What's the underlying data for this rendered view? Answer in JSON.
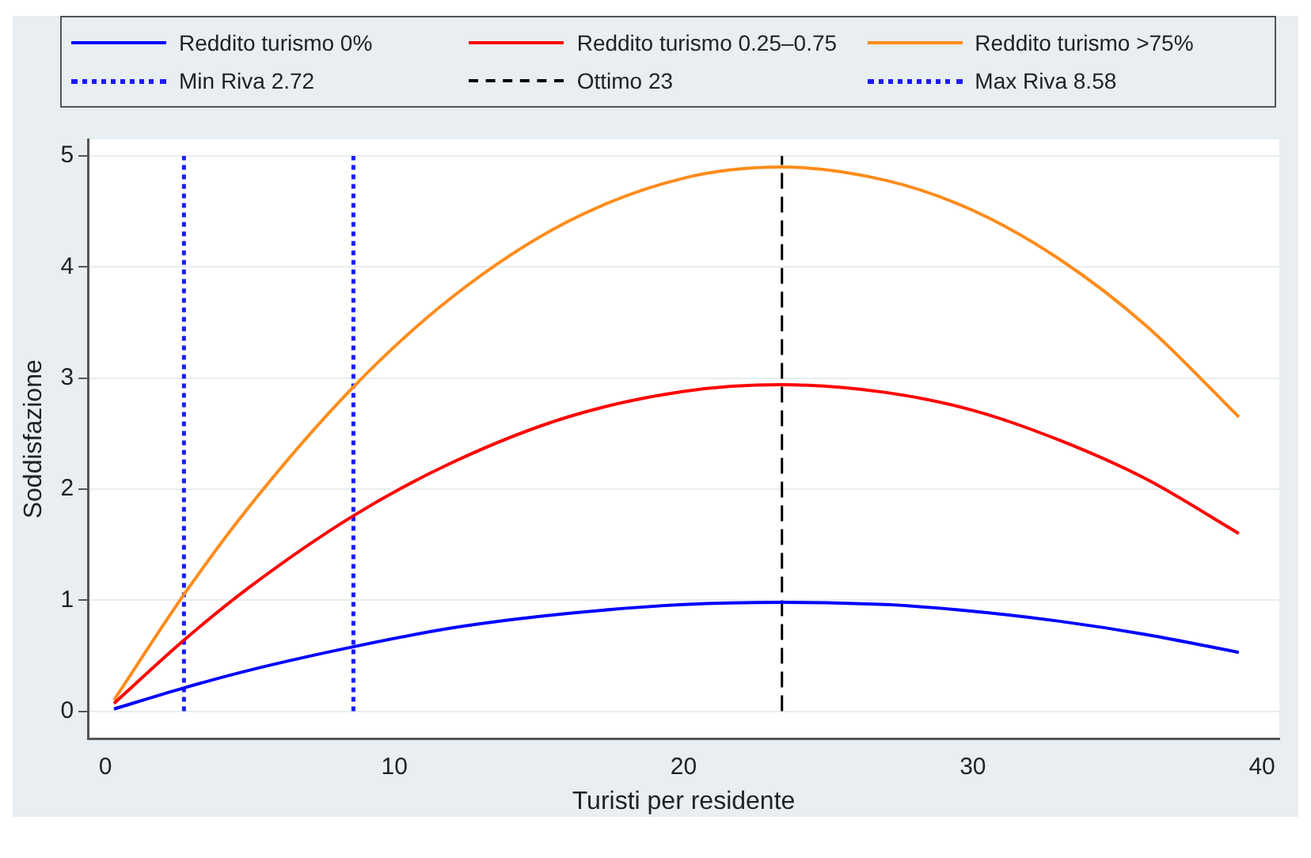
{
  "chart_data": {
    "type": "line",
    "xlabel": "Turisti per residente",
    "ylabel": "Soddisfazione",
    "x": [
      0.3,
      2.72,
      5,
      8.58,
      12,
      16,
      20,
      23.4,
      27,
      30,
      33,
      36,
      39.2
    ],
    "series": [
      {
        "name": "Reddito turismo 0%",
        "color": "#0000ff",
        "values": [
          0.02,
          0.21,
          0.37,
          0.58,
          0.75,
          0.88,
          0.96,
          0.98,
          0.96,
          0.9,
          0.81,
          0.69,
          0.53
        ]
      },
      {
        "name": "Reddito turismo 0.25–0.75",
        "color": "#ff0000",
        "values": [
          0.07,
          0.64,
          1.12,
          1.76,
          2.24,
          2.65,
          2.88,
          2.94,
          2.87,
          2.71,
          2.44,
          2.09,
          1.6
        ]
      },
      {
        "name": "Reddito turismo >75%",
        "color": "#ff8c1a",
        "values": [
          0.1,
          1.05,
          1.85,
          2.92,
          3.73,
          4.41,
          4.8,
          4.9,
          4.78,
          4.51,
          4.07,
          3.47,
          2.65
        ]
      }
    ],
    "ref_lines": [
      {
        "axis": "x",
        "value": 2.72,
        "label": "Min Riva 2.72",
        "color": "#1a1aff",
        "line_style": "dotted"
      },
      {
        "axis": "x",
        "value": 23.4,
        "label": "Ottimo 23",
        "color": "#000000",
        "line_style": "dashed"
      },
      {
        "axis": "x",
        "value": 8.58,
        "label": "Max Riva 8.58",
        "color": "#1a1aff",
        "line_style": "dotted"
      }
    ],
    "xlim": [
      -0.6,
      40.6
    ],
    "xticks": [
      0,
      10,
      20,
      30,
      40
    ],
    "ylim": [
      -0.25,
      5.15
    ],
    "yticks": [
      0,
      1,
      2,
      3,
      4,
      5
    ],
    "grid": "y",
    "legend": "top",
    "marker": "none",
    "line_style": "solid"
  }
}
